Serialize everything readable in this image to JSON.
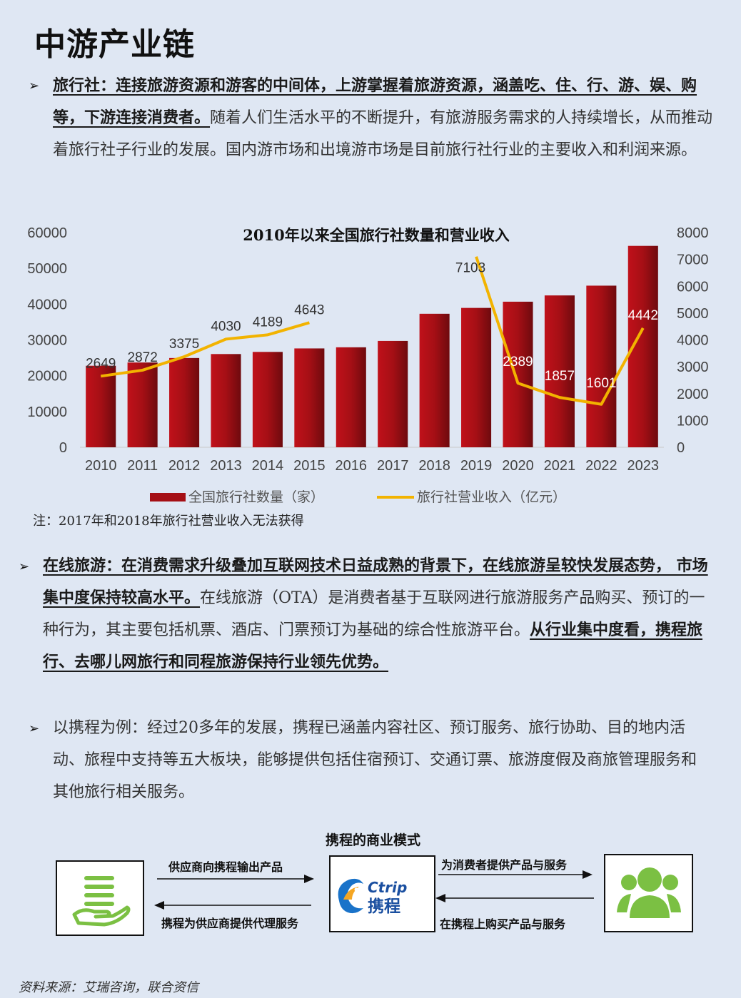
{
  "page_title": "中游产业链",
  "para1": {
    "underlined": "旅行社：连接旅游资源和游客的中间体，上游掌握着旅游资源，涵盖吃、住、行、游、娱、购等，下游连接消费者。",
    "text": "随着人们生活水平的不断提升，有旅游服务需求的人持续增长，从而推动着旅行社子行业的发展。国内游市场和出境游市场是目前旅行社行业的主要收入和利润来源。"
  },
  "chart_data": {
    "type": "bar",
    "title": "2010年以来全国旅行社数量和营业收入",
    "categories": [
      "2010",
      "2011",
      "2012",
      "2013",
      "2014",
      "2015",
      "2016",
      "2017",
      "2018",
      "2019",
      "2020",
      "2021",
      "2022",
      "2023"
    ],
    "series": [
      {
        "name": "全国旅行社数量（家）",
        "type": "bar",
        "axis": "left",
        "values": [
          22784,
          23690,
          24944,
          26054,
          26650,
          27621,
          27939,
          29717,
          37309,
          38943,
          40682,
          42432,
          45162,
          56275
        ]
      },
      {
        "name": "旅行社营业收入（亿元）",
        "type": "line",
        "axis": "right",
        "values": [
          2649,
          2872,
          3375,
          4030,
          4189,
          4643,
          null,
          null,
          null,
          7103,
          2389,
          1857,
          1601,
          4442
        ],
        "labels": [
          "2649",
          "2872",
          "3375",
          "4030",
          "4189",
          "4643",
          "",
          "",
          "",
          "7103",
          "2389",
          "1857",
          "1601",
          "4442"
        ]
      }
    ],
    "ylim_left": [
      0,
      60000
    ],
    "yticks_left": [
      "60000",
      "50000",
      "40000",
      "30000",
      "20000",
      "10000",
      "0"
    ],
    "ylim_right": [
      0,
      8000
    ],
    "yticks_right": [
      "8000",
      "7000",
      "6000",
      "5000",
      "4000",
      "3000",
      "2000",
      "1000",
      "0"
    ],
    "legend_position": "bottom",
    "colors": {
      "bar": "#a50f15",
      "line": "#f2b300"
    }
  },
  "chart_note": "注：2017年和2018年旅行社营业收入无法获得",
  "para2": {
    "underlined": "在线旅游：在消费需求升级叠加互联网技术日益成熟的背景下，在线旅游呈较快发展态势， 市场集中度保持较高水平。",
    "text": "在线旅游（OTA）是消费者基于互联网进行旅游服务产品购买、预订的一种行为，其主要包括机票、酒店、门票预订为基础的综合性旅游平台。",
    "underlined2": "从行业集中度看，携程旅行、去哪儿网旅行和同程旅游保持行业领先优势。"
  },
  "para3": "以携程为例：经过20多年的发展，携程已涵盖内容社区、预订服务、旅行协助、目的地内活动、旅程中支持等五大板块，能够提供包括住宿预订、交通订票、旅游度假及商旅管理服务和其他旅行相关服务。",
  "diagram": {
    "title": "携程的商业模式",
    "arrow1": "供应商向携程输出产品",
    "arrow2": "携程为供应商提供代理服务",
    "arrow3": "为消费者提供产品与服务",
    "arrow4": "在携程上购买产品与服务",
    "logo_en": "Ctrip",
    "logo_cn": "携程",
    "icon_left": "supplier-hand-icon",
    "icon_right": "consumer-group-icon"
  },
  "source": "资料来源：艾瑞咨询，联合资信"
}
